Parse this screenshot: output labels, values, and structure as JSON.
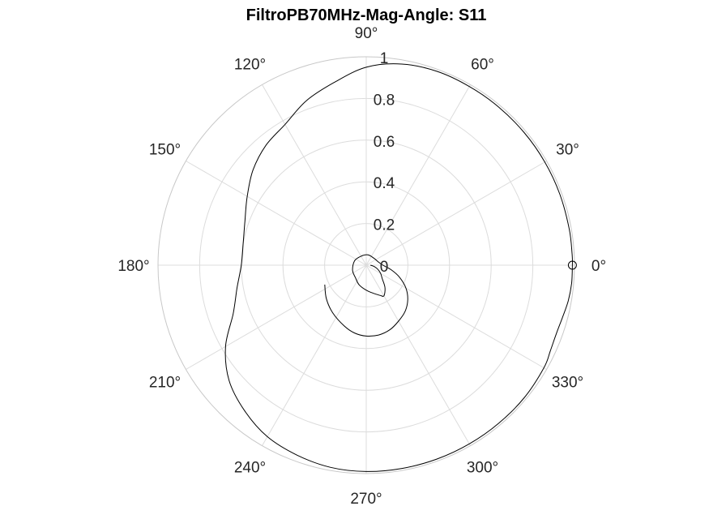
{
  "chart_data": {
    "type": "polar",
    "title": "FiltroPB70MHz-Mag-Angle: S11",
    "theta_ticks": [
      0,
      30,
      60,
      90,
      120,
      150,
      180,
      210,
      240,
      270,
      300,
      330
    ],
    "theta_tick_labels": [
      "0°",
      "30°",
      "60°",
      "90°",
      "120°",
      "150°",
      "180°",
      "210°",
      "240°",
      "270°",
      "300°",
      "330°"
    ],
    "r_ticks": [
      0,
      0.2,
      0.4,
      0.6,
      0.8,
      1
    ],
    "r_tick_labels": [
      "0",
      "0.2",
      "0.4",
      "0.6",
      "0.8",
      "1"
    ],
    "rlim": [
      0,
      1
    ],
    "grid": true,
    "series": [
      {
        "color": "#000000",
        "points_theta_deg_r": [
          [
            0,
            0.99
          ],
          [
            -5,
            0.99
          ],
          [
            -10,
            0.985
          ],
          [
            -15,
            0.975
          ],
          [
            -20,
            0.97
          ],
          [
            -25,
            0.975
          ],
          [
            -30,
            0.985
          ],
          [
            -40,
            0.99
          ],
          [
            -50,
            0.99
          ],
          [
            -60,
            0.99
          ],
          [
            -70,
            0.99
          ],
          [
            -80,
            0.99
          ],
          [
            -90,
            0.99
          ],
          [
            -100,
            0.985
          ],
          [
            -110,
            0.97
          ],
          [
            -120,
            0.95
          ],
          [
            -130,
            0.91
          ],
          [
            -140,
            0.86
          ],
          [
            -150,
            0.78
          ],
          [
            -160,
            0.68
          ],
          [
            -170,
            0.63
          ],
          [
            -180,
            0.6
          ],
          [
            170,
            0.6
          ],
          [
            160,
            0.62
          ],
          [
            150,
            0.66
          ],
          [
            140,
            0.71
          ],
          [
            130,
            0.75
          ],
          [
            120,
            0.78
          ],
          [
            110,
            0.84
          ],
          [
            100,
            0.89
          ],
          [
            90,
            0.95
          ],
          [
            80,
            0.98
          ],
          [
            70,
            0.99
          ],
          [
            60,
            0.99
          ],
          [
            50,
            0.99
          ],
          [
            40,
            0.99
          ],
          [
            30,
            0.99
          ],
          [
            20,
            0.99
          ],
          [
            10,
            0.99
          ],
          [
            3,
            0.99
          ],
          [
            0,
            0.99
          ]
        ]
      },
      {
        "color": "#000000",
        "points_theta_deg_r": [
          [
            -155,
            0.22
          ],
          [
            -140,
            0.25
          ],
          [
            -125,
            0.28
          ],
          [
            -110,
            0.31
          ],
          [
            -100,
            0.33
          ],
          [
            -90,
            0.34
          ],
          [
            -80,
            0.34
          ],
          [
            -70,
            0.33
          ],
          [
            -60,
            0.31
          ],
          [
            -50,
            0.29
          ],
          [
            -40,
            0.26
          ],
          [
            -30,
            0.22
          ],
          [
            -20,
            0.17
          ],
          [
            -10,
            0.12
          ],
          [
            0,
            0.08
          ],
          [
            15,
            0.06
          ],
          [
            40,
            0.05
          ],
          [
            80,
            0.05
          ],
          [
            120,
            0.05
          ],
          [
            160,
            0.06
          ],
          [
            200,
            0.07
          ],
          [
            230,
            0.08
          ],
          [
            250,
            0.1
          ],
          [
            270,
            0.12
          ],
          [
            285,
            0.14
          ],
          [
            295,
            0.16
          ],
          [
            300,
            0.17
          ],
          [
            310,
            0.14
          ],
          [
            320,
            0.1
          ],
          [
            330,
            0.08
          ],
          [
            340,
            0.06
          ],
          [
            350,
            0.04
          ],
          [
            0,
            0.02
          ]
        ]
      }
    ]
  }
}
